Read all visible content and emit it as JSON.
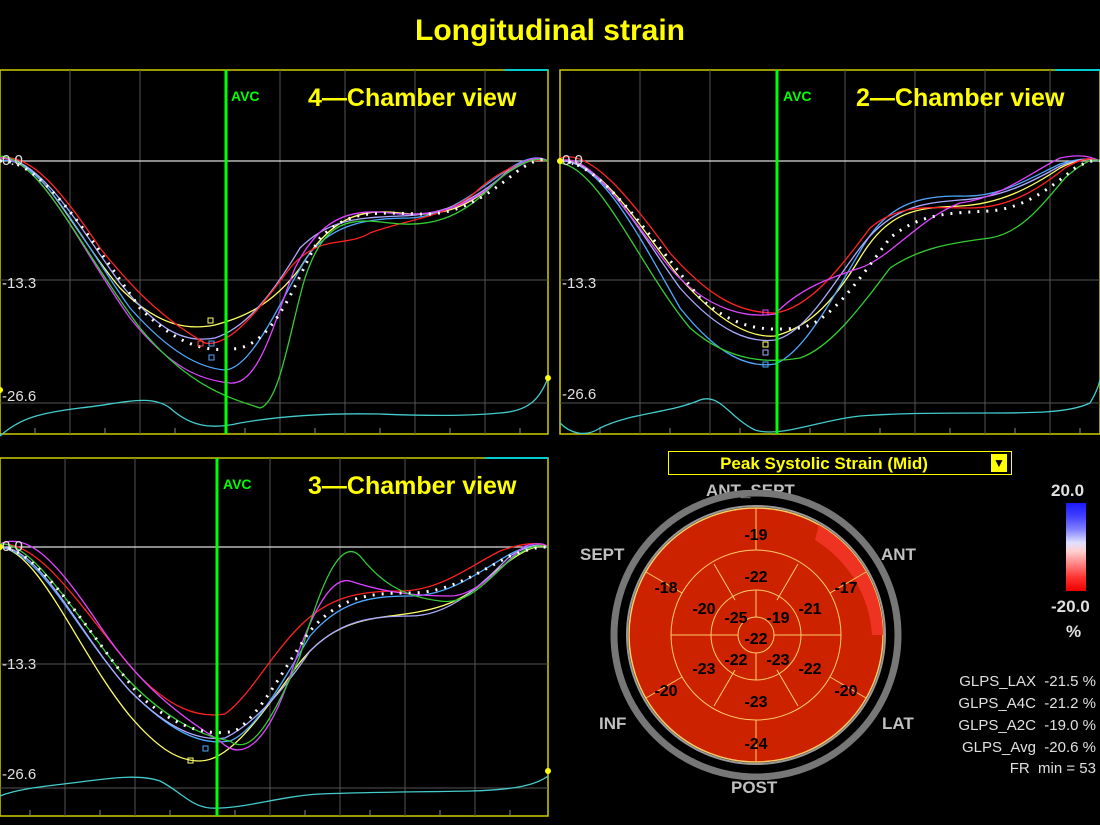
{
  "title": "Longitudinal strain",
  "panels": [
    {
      "id": "4ch",
      "view_title": "4—Chamber view",
      "avc_label": "AVC",
      "y_ticks": [
        "0.0",
        "-13.3",
        "-26.6"
      ]
    },
    {
      "id": "2ch",
      "view_title": "2—Chamber view",
      "avc_label": "AVC",
      "y_ticks": [
        "0.0",
        "-13.3",
        "-26.6"
      ]
    },
    {
      "id": "3ch",
      "view_title": "3—Chamber view",
      "avc_label": "AVC",
      "y_ticks": [
        "0.0",
        "-13.3",
        "-26.6"
      ]
    }
  ],
  "bullseye": {
    "dropdown_label": "Peak Systolic Strain (Mid)",
    "dropdown_icon": "triangle-down-icon",
    "wall_labels": {
      "ant_sept": "ANT_SEPT",
      "ant": "ANT",
      "lat": "LAT",
      "post": "POST",
      "inf": "INF",
      "sept": "SEPT"
    },
    "outer_ring": [
      "-19",
      "-17",
      "-20",
      "-24",
      "-20",
      "-18"
    ],
    "middle_ring": [
      "-22",
      "-21",
      "-22",
      "-23",
      "-23",
      "-20"
    ],
    "inner_ring": [
      "-19",
      "-23",
      "-22",
      "-25"
    ],
    "apex": "-22",
    "fill_color": "#cc2200",
    "highlight_color": "#ee3322"
  },
  "scale": {
    "max": "20.0",
    "min": "-20.0",
    "unit": "%"
  },
  "glps": [
    {
      "label": "GLPS_LAX",
      "value": "-21.5 %"
    },
    {
      "label": "GLPS_A4C",
      "value": "-21.2 %"
    },
    {
      "label": "GLPS_A2C",
      "value": "-19.0 %"
    },
    {
      "label": "GLPS_Avg",
      "value": "-20.6 %"
    }
  ],
  "frame_rate": {
    "label": "FR",
    "unit": "min",
    "value": "= 53"
  },
  "colors": {
    "title": "#ffff00",
    "avc": "#00ff00",
    "frame": "#ffff00"
  }
}
